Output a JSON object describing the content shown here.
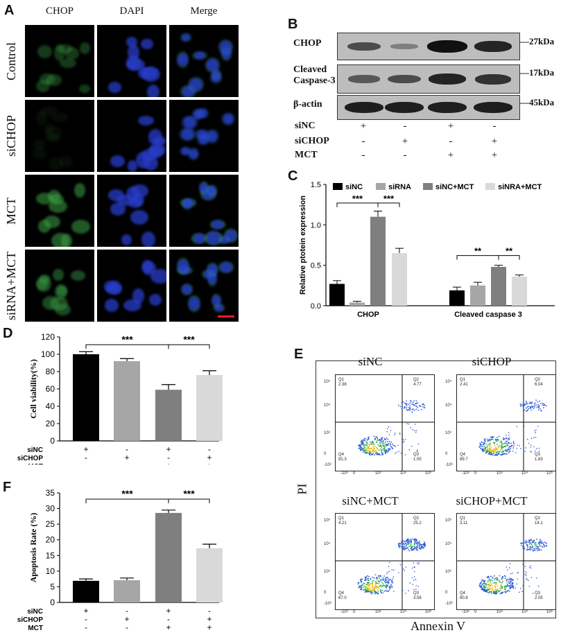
{
  "figure": {
    "panels": {
      "A": "A",
      "B": "B",
      "C": "C",
      "D": "D",
      "E": "E",
      "F": "F"
    }
  },
  "panelA": {
    "columns": [
      "CHOP",
      "DAPI",
      "Merge"
    ],
    "rows": [
      "Control",
      "siCHOP",
      "MCT",
      "siRNA+MCT"
    ]
  },
  "panelB": {
    "bands": [
      {
        "label": "CHOP",
        "kda": "—27kDa"
      },
      {
        "label": "Cleaved\nCaspase-3",
        "kda": "—17kDa"
      },
      {
        "label": "β-actin",
        "kda": "—45kDa"
      }
    ],
    "conditions": [
      {
        "label": "siNC",
        "signs": [
          "+",
          "-",
          "+",
          "-"
        ]
      },
      {
        "label": "siCHOP",
        "signs": [
          "-",
          "+",
          "-",
          "+"
        ]
      },
      {
        "label": "MCT",
        "signs": [
          "-",
          "-",
          "+",
          "+"
        ]
      }
    ],
    "band_intensity": {
      "CHOP": [
        0.55,
        0.15,
        1.0,
        0.85
      ],
      "Cleaved Caspase-3": [
        0.45,
        0.55,
        0.85,
        0.75
      ],
      "β-actin": [
        0.9,
        0.9,
        0.9,
        0.9
      ]
    }
  },
  "chart_data": [
    {
      "id": "C",
      "type": "bar",
      "categories": [
        "CHOP",
        "Cleaved caspase 3"
      ],
      "series": [
        {
          "name": "siNC",
          "values": [
            0.27,
            0.19
          ],
          "errors": [
            0.04,
            0.04
          ],
          "color": "#000000"
        },
        {
          "name": "siRNA",
          "values": [
            0.04,
            0.25
          ],
          "errors": [
            0.015,
            0.04
          ],
          "color": "#a6a6a6"
        },
        {
          "name": "siNC+MCT",
          "values": [
            1.1,
            0.48
          ],
          "errors": [
            0.07,
            0.02
          ],
          "color": "#7f7f7f"
        },
        {
          "name": "siNRA+MCT",
          "values": [
            0.65,
            0.36
          ],
          "errors": [
            0.06,
            0.02
          ],
          "color": "#d9d9d9"
        }
      ],
      "ylabel": "Relative ptotein expression",
      "ylim": [
        0,
        1.5
      ],
      "yticks": [
        "0.0",
        "0.5",
        "1.0",
        "1.5"
      ],
      "significance": [
        {
          "text": "***",
          "category": 0,
          "from": 0,
          "to": 2,
          "y": 1.27
        },
        {
          "text": "***",
          "category": 0,
          "from": 2,
          "to": 3,
          "y": 1.27
        },
        {
          "text": "**",
          "category": 1,
          "from": 0,
          "to": 2,
          "y": 0.62
        },
        {
          "text": "**",
          "category": 1,
          "from": 2,
          "to": 3,
          "y": 0.62
        }
      ]
    },
    {
      "id": "D",
      "type": "bar",
      "values": [
        100,
        92,
        59,
        76
      ],
      "errors": [
        3,
        3,
        6,
        5
      ],
      "colors": [
        "#000000",
        "#a6a6a6",
        "#7f7f7f",
        "#d9d9d9"
      ],
      "ylabel": "Cell viability(%)",
      "ylim": [
        0,
        120
      ],
      "yticks": [
        "0",
        "20",
        "40",
        "60",
        "80",
        "100",
        "120"
      ],
      "significance": [
        {
          "text": "***",
          "from": 0,
          "to": 2,
          "y": 111
        },
        {
          "text": "***",
          "from": 2,
          "to": 3,
          "y": 111
        }
      ],
      "conditions": [
        {
          "label": "siNC",
          "signs": [
            "+",
            "-",
            "+",
            "-"
          ]
        },
        {
          "label": "siCHOP",
          "signs": [
            "-",
            "+",
            "-",
            "+"
          ]
        },
        {
          "label": "MCT",
          "signs": [
            "-",
            "-",
            "+",
            "+"
          ]
        }
      ]
    },
    {
      "id": "F",
      "type": "bar",
      "values": [
        6.9,
        7.1,
        28.6,
        17.3
      ],
      "errors": [
        0.6,
        0.7,
        0.9,
        1.3
      ],
      "colors": [
        "#000000",
        "#a6a6a6",
        "#7f7f7f",
        "#d9d9d9"
      ],
      "ylabel": "Apoptosis Rate (%)",
      "ylim": [
        0,
        35
      ],
      "yticks": [
        "0",
        "5",
        "10",
        "15",
        "20",
        "25",
        "30",
        "35"
      ],
      "significance": [
        {
          "text": "***",
          "from": 0,
          "to": 2,
          "y": 33
        },
        {
          "text": "***",
          "from": 2,
          "to": 3,
          "y": 33
        }
      ],
      "conditions": [
        {
          "label": "siNC",
          "signs": [
            "+",
            "-",
            "+",
            "-"
          ]
        },
        {
          "label": "siCHOP",
          "signs": [
            "-",
            "+",
            "-",
            "+"
          ]
        },
        {
          "label": "MCT",
          "signs": [
            "-",
            "-",
            "+",
            "+"
          ]
        }
      ]
    }
  ],
  "panelE": {
    "xlabel": "Annexin V",
    "ylabel": "PI",
    "plots": [
      {
        "title": "siNC",
        "q1": [
          "Q1",
          "2.38"
        ],
        "q2": [
          "Q2",
          "4.77"
        ],
        "q3": [
          "Q3",
          "1.55"
        ],
        "q4": [
          "Q4",
          "91.3"
        ]
      },
      {
        "title": "siCHOP",
        "q1": [
          "Q1",
          "2.41"
        ],
        "q2": [
          "Q2",
          "6.04"
        ],
        "q3": [
          "Q3",
          "1.83"
        ],
        "q4": [
          "Q4",
          "89.7"
        ]
      },
      {
        "title": "siNC+MCT",
        "q1": [
          "Q1",
          "4.21"
        ],
        "q2": [
          "Q2",
          "25.2"
        ],
        "q3": [
          "Q3",
          "3.58"
        ],
        "q4": [
          "Q4",
          "67.0"
        ]
      },
      {
        "title": "siCHOP+MCT",
        "q1": [
          "Q1",
          "3.11"
        ],
        "q2": [
          "Q2",
          "14.1"
        ],
        "q3": [
          "Q3",
          "2.05"
        ],
        "q4": [
          "Q4",
          "80.8"
        ]
      }
    ],
    "axis_ticks": {
      "x": [
        "-10³",
        "0",
        "10³",
        "10⁴",
        "10⁵"
      ],
      "y": [
        "-10³",
        "0",
        "10³",
        "10⁴",
        "10⁵"
      ]
    }
  }
}
